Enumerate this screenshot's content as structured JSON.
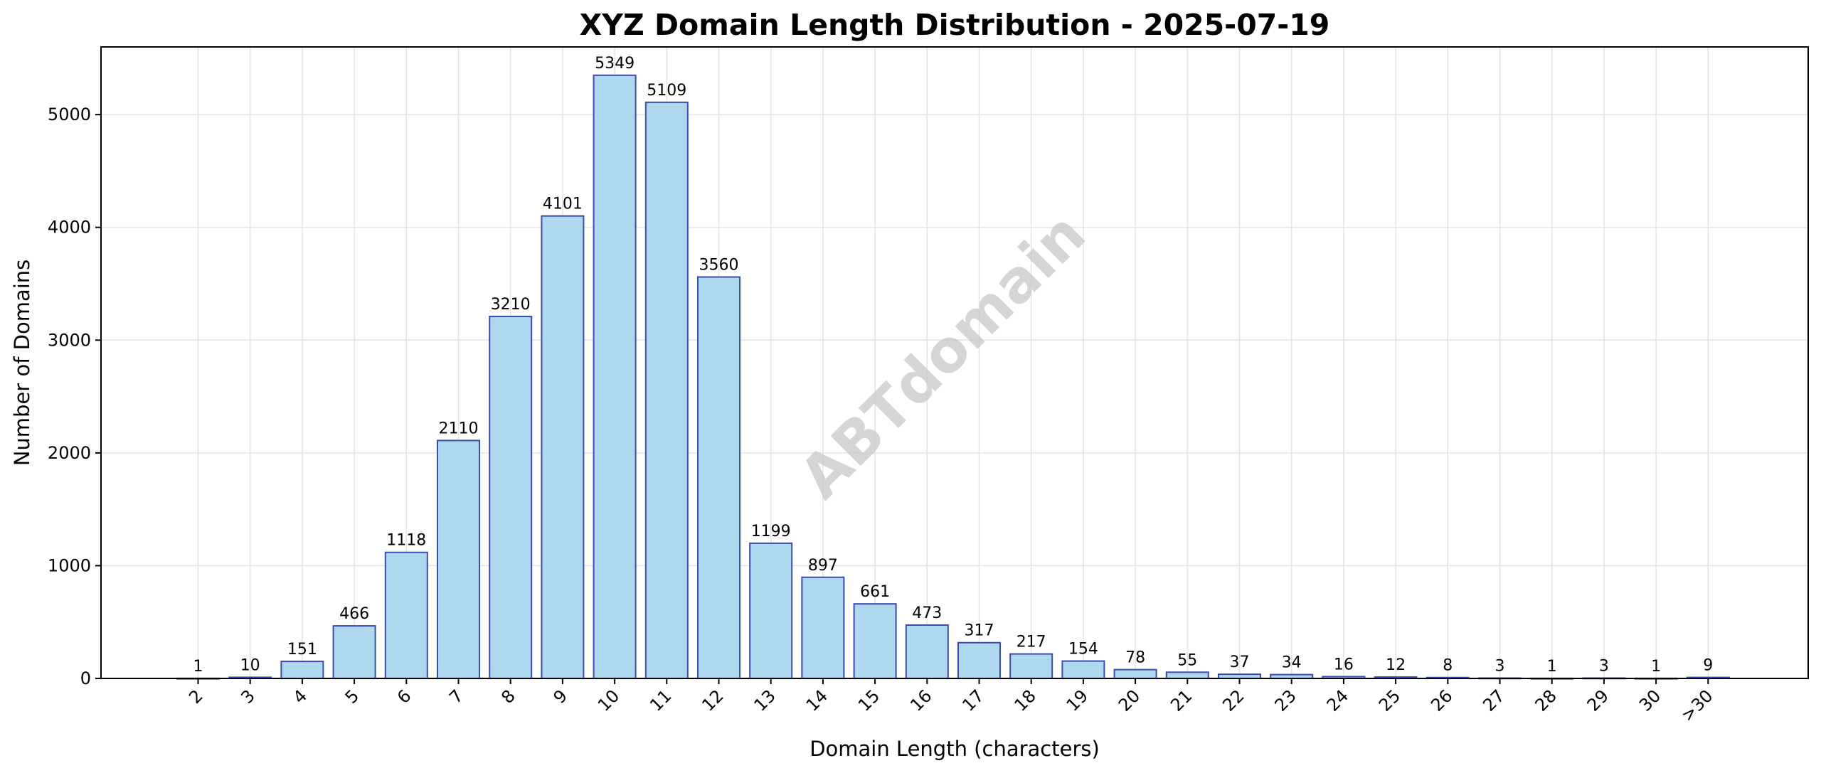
{
  "chart_data": {
    "type": "bar",
    "title": "XYZ Domain Length Distribution - 2025-07-19",
    "xlabel": "Domain Length (characters)",
    "ylabel": "Number of Domains",
    "watermark": "ABTdomain",
    "categories": [
      "2",
      "3",
      "4",
      "5",
      "6",
      "7",
      "8",
      "9",
      "10",
      "11",
      "12",
      "13",
      "14",
      "15",
      "16",
      "17",
      "18",
      "19",
      "20",
      "21",
      "22",
      "23",
      "24",
      "25",
      "26",
      "27",
      "28",
      "29",
      "30",
      ">30"
    ],
    "values": [
      1,
      10,
      151,
      466,
      1118,
      2110,
      3210,
      4101,
      5349,
      5109,
      3560,
      1199,
      897,
      661,
      473,
      317,
      217,
      154,
      78,
      55,
      37,
      34,
      16,
      12,
      8,
      3,
      1,
      3,
      1,
      9
    ],
    "ylim": [
      0,
      5600
    ],
    "yticks": [
      0,
      1000,
      2000,
      3000,
      4000,
      5000
    ],
    "grid": true,
    "bar_fill": "#add8ee",
    "bar_edge": "#3a4bb3"
  }
}
